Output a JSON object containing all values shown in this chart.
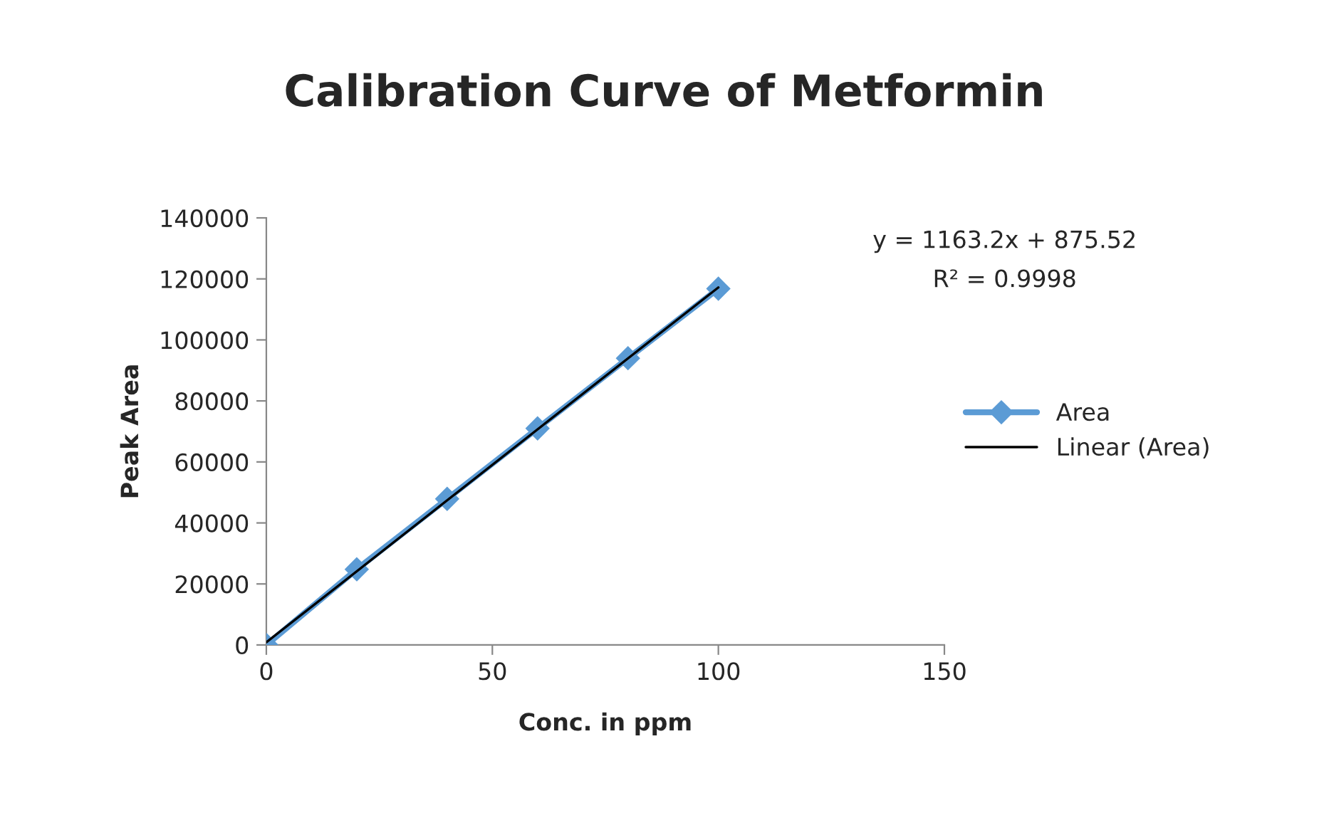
{
  "chart_data": {
    "type": "line",
    "title": "Calibration Curve of Metformin",
    "xlabel": "Conc. in ppm",
    "ylabel": "Peak Area",
    "x": [
      0,
      20,
      40,
      60,
      80,
      100
    ],
    "series": [
      {
        "name": "Area",
        "color": "#5b9bd5",
        "values": [
          0,
          24800,
          47900,
          71000,
          94000,
          116800
        ],
        "marker": "diamond"
      },
      {
        "name": "Linear (Area)",
        "color": "#000000",
        "type": "line",
        "x": [
          0,
          100
        ],
        "values": [
          900,
          117200
        ],
        "marker": "none"
      }
    ],
    "xlim": [
      0,
      150
    ],
    "xticks": [
      0,
      50,
      100,
      150
    ],
    "ylim": [
      0,
      140000
    ],
    "yticks": [
      0,
      20000,
      40000,
      60000,
      80000,
      100000,
      120000,
      140000
    ],
    "annotations": [
      "y = 1163.2x + 875.52",
      "R² = 0.9998"
    ],
    "grid": false,
    "legend": "right"
  }
}
